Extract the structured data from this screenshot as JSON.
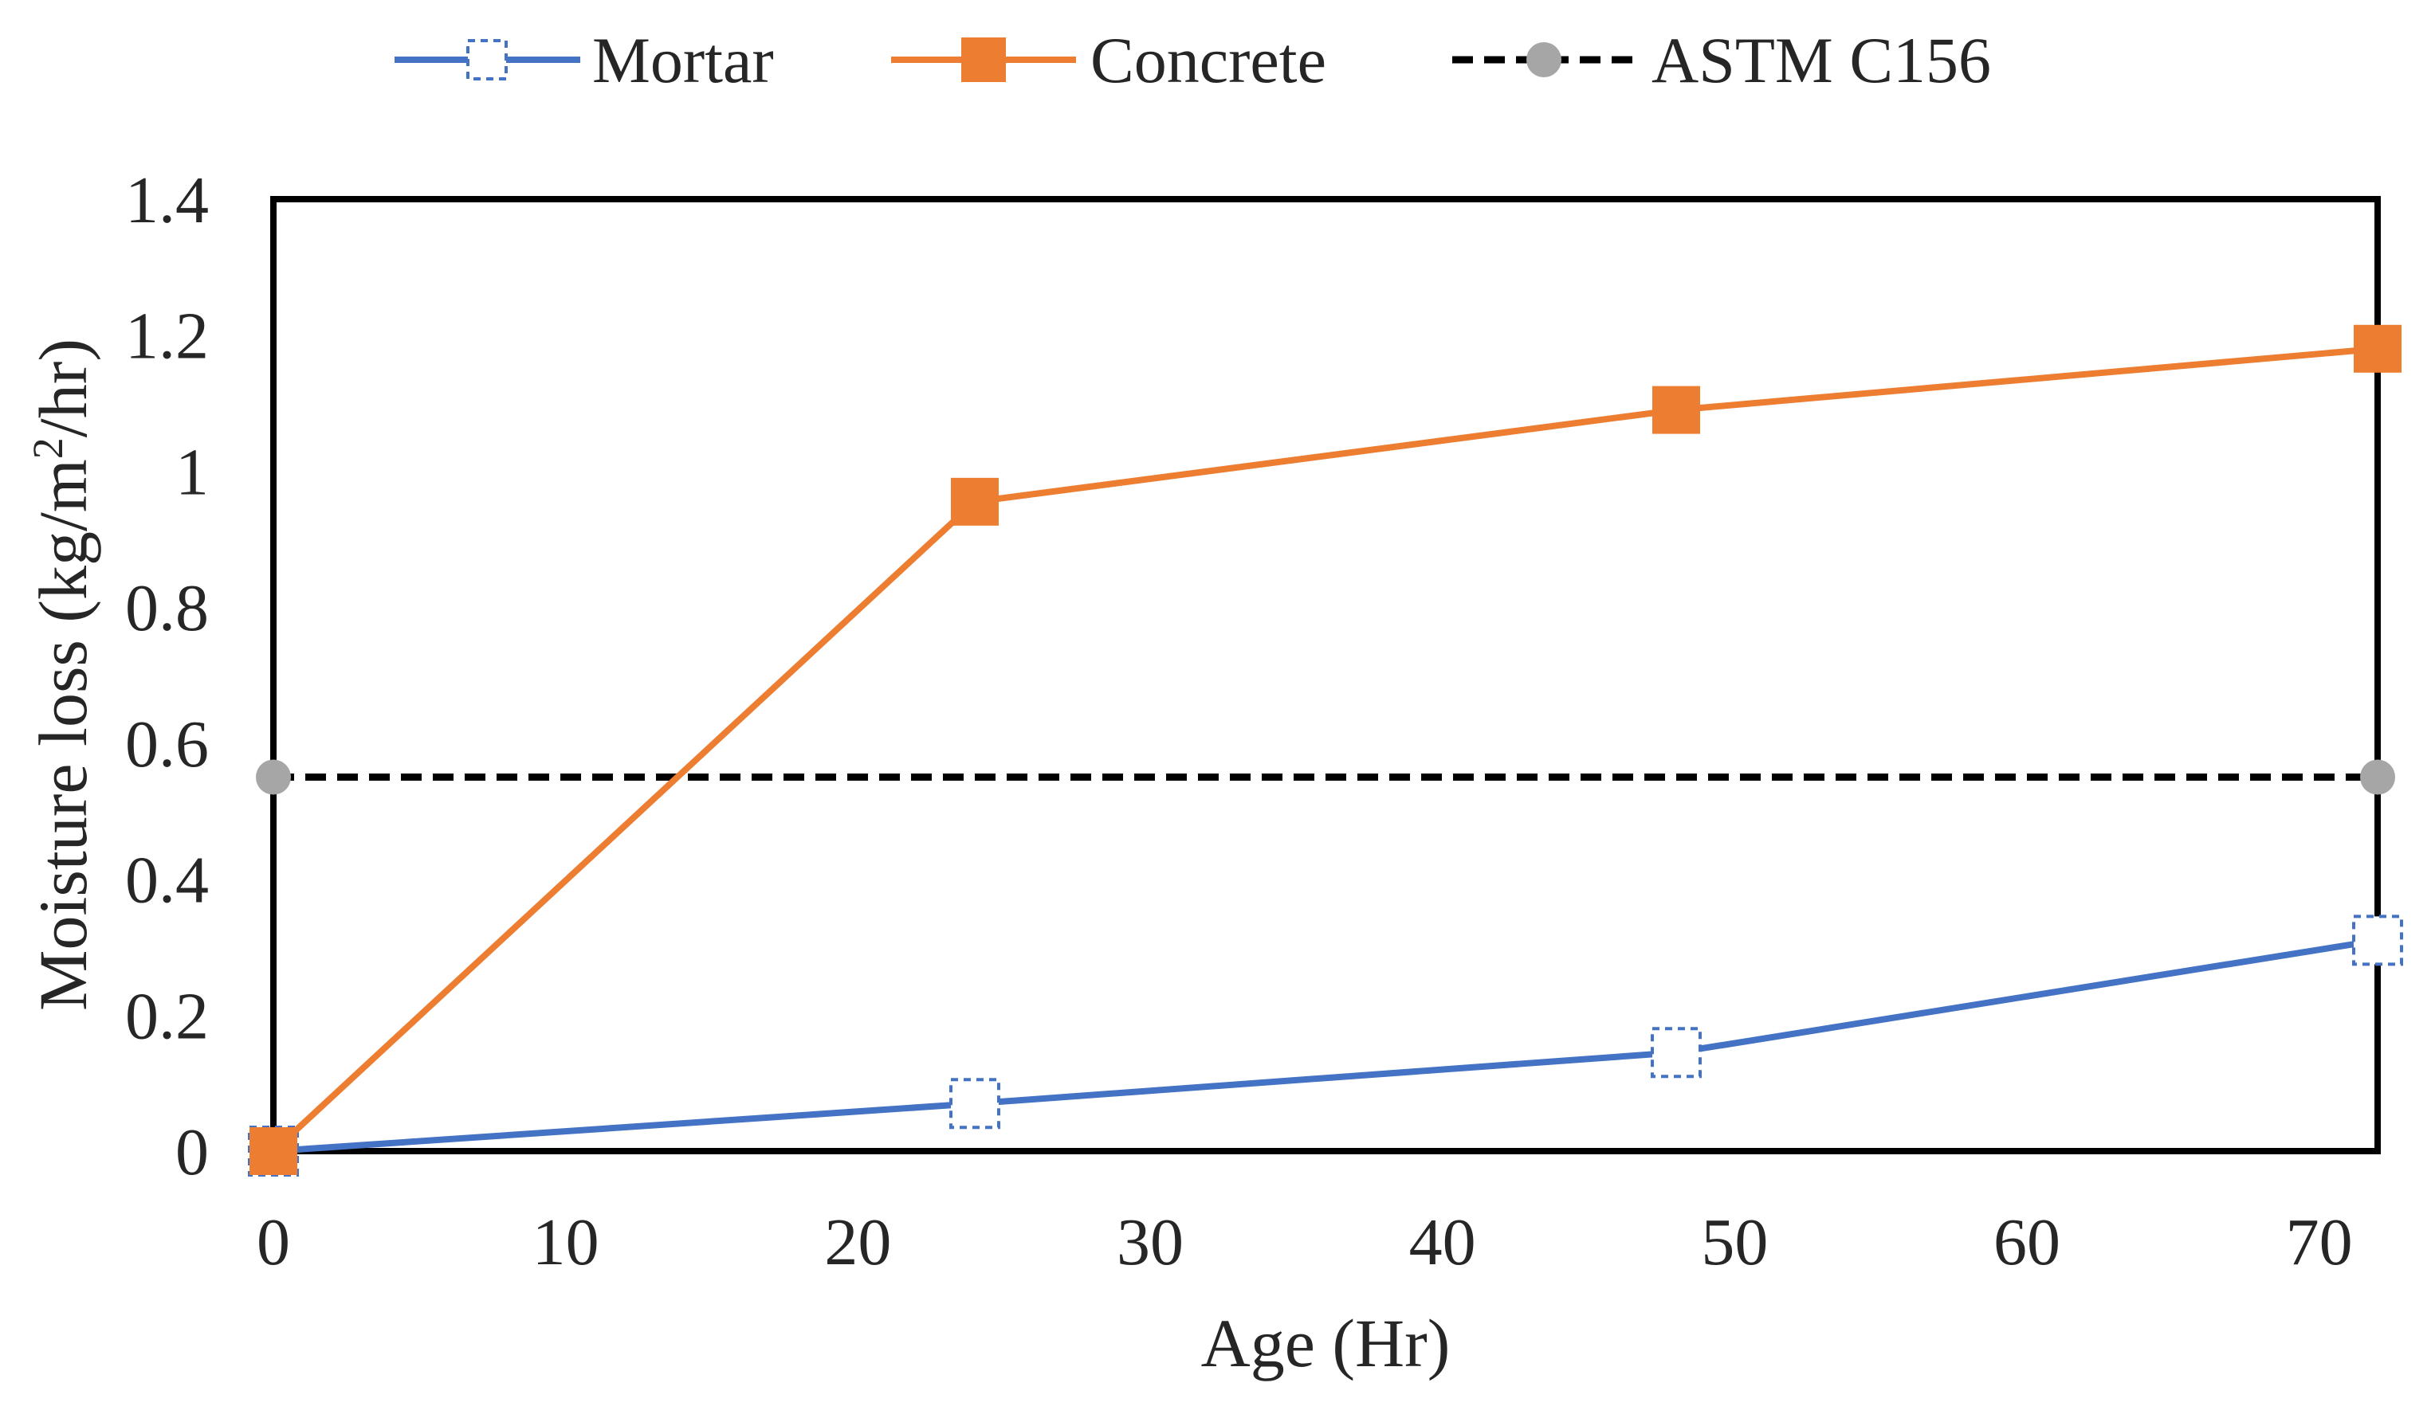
{
  "chart_data": {
    "type": "line",
    "title": "",
    "xlabel": "Age (Hr)",
    "ylabel": {
      "prefix": "Moisture loss (kg/m",
      "superscript": "2",
      "suffix": "/hr)"
    },
    "xlim": [
      0,
      72
    ],
    "ylim": [
      0,
      1.4
    ],
    "xticks": [
      0,
      10,
      20,
      30,
      40,
      50,
      60,
      70
    ],
    "xtick_labels": [
      "0",
      "10",
      "20",
      "30",
      "40",
      "50",
      "60",
      "70"
    ],
    "yticks": [
      0,
      0.2,
      0.4,
      0.6,
      0.8,
      1.0,
      1.2,
      1.4
    ],
    "ytick_labels": [
      "0",
      "0.2",
      "0.4",
      "0.6",
      "0.8",
      "1",
      "1.2",
      "1.4"
    ],
    "grid": false,
    "legend_position": "top-center",
    "series": [
      {
        "name": "Mortar",
        "color": "#4472C4",
        "marker": "square-dashed-open",
        "line": "solid",
        "x": [
          0,
          24,
          48,
          72
        ],
        "y": [
          0,
          0.07,
          0.145,
          0.31
        ]
      },
      {
        "name": "Concrete",
        "color": "#ED7D31",
        "marker": "square-filled",
        "line": "solid",
        "x": [
          0,
          24,
          48,
          72
        ],
        "y": [
          0,
          0.955,
          1.09,
          1.18
        ]
      },
      {
        "name": "ASTM C156",
        "color": "#000000",
        "marker_color": "#A6A6A6",
        "marker": "circle-filled",
        "line": "dashed",
        "x": [
          0,
          72
        ],
        "y": [
          0.55,
          0.55
        ]
      }
    ]
  }
}
